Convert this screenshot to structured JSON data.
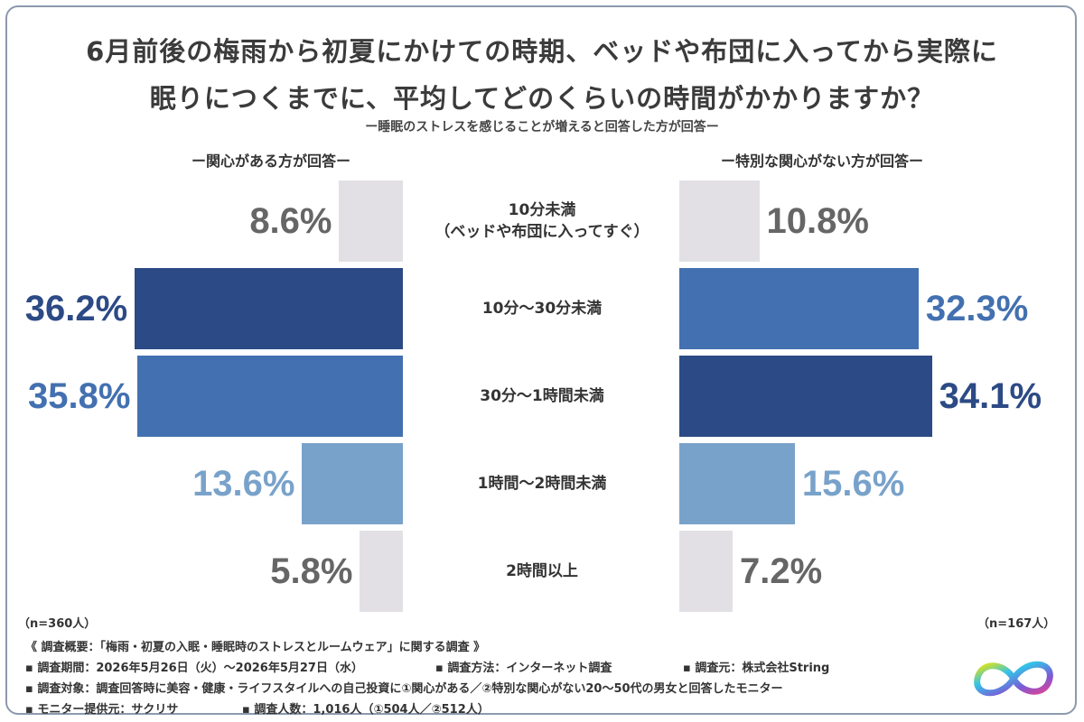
{
  "title_line1": "6月前後の梅雨から初夏にかけての時期、ベッドや布団に入ってから実際に",
  "title_line2": "眠りにつくまでに、平均してどのくらいの時間がかかりますか？",
  "subtitle": "ー睡眠のストレスを感じることが増えると回答した方が回答ー",
  "left_label": "ー関心がある方が回答ー",
  "right_label": "ー特別な関心がない方が回答ー",
  "left_n": "（n=360人）",
  "right_n": "（n=167人）",
  "footer": {
    "line1": "《 調査概要：「梅雨・初夏の入眠・睡眠時のストレスとルームウェア」に関する調査 》",
    "line2a": "▪ 調査期間：2026年5月26日（火）～2026年5月27日（水）",
    "line2b": "▪ 調査方法：インターネット調査",
    "line2c": "▪ 調査元：株式会社String",
    "line3": "▪ 調査対象：調査回答時に美容・健康・ライフスタイルへの自己投資に①関心がある／②特別な関心がない20～50代の男女と回答したモニター",
    "line4a": "▪ モニター提供元：サクリサ",
    "line4b": "▪ 調査人数：1,016人（①504人／②512人）"
  },
  "chart_data": {
    "type": "bar",
    "categories": [
      "10分未満",
      "10分～30分未満",
      "30分～1時間未満",
      "1時間～2時間未満",
      "2時間以上"
    ],
    "category_note": "（ベッドや布団に入ってすぐ）",
    "series": [
      {
        "name": "ー関心がある方が回答ー",
        "values": [
          8.6,
          36.2,
          35.8,
          13.6,
          5.8
        ],
        "labels": [
          "8.6%",
          "36.2%",
          "35.8%",
          "13.6%",
          "5.8%"
        ]
      },
      {
        "name": "ー特別な関心がない方が回答ー",
        "values": [
          10.8,
          32.3,
          34.1,
          15.6,
          7.2
        ],
        "labels": [
          "10.8%",
          "32.3%",
          "34.1%",
          "15.6%",
          "7.2%"
        ]
      }
    ],
    "colors": {
      "rank1": "#2c4a85",
      "rank2": "#4370b0",
      "rank3": "#79a2ca",
      "rest": "#e2e0e4"
    },
    "label_colors": {
      "rank1": "#2c4a85",
      "rank2": "#4370b0",
      "rank3": "#79a2ca",
      "rest": "#666666"
    }
  }
}
